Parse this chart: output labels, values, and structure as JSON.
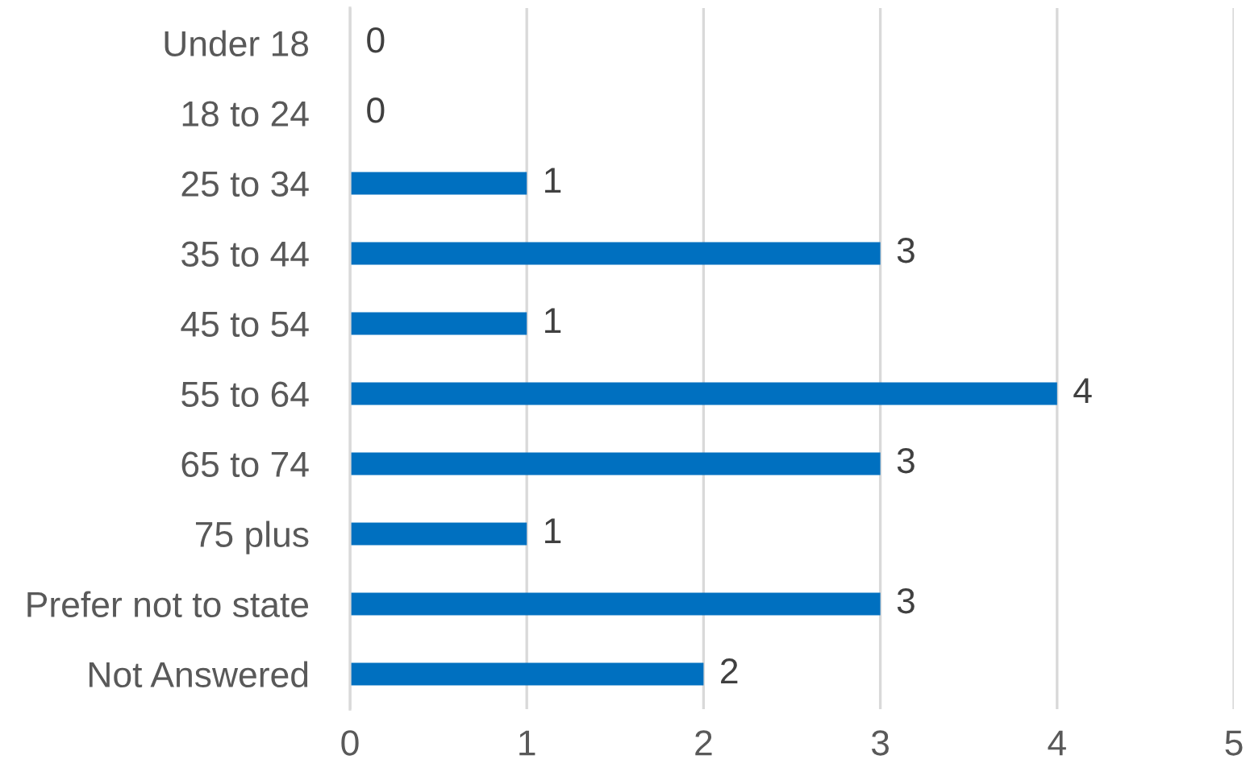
{
  "chart_data": {
    "type": "bar",
    "orientation": "horizontal",
    "categories": [
      "Under 18",
      "18 to 24",
      "25 to 34",
      "35 to 44",
      "45 to 54",
      "55 to 64",
      "65 to 74",
      "75 plus",
      "Prefer not to state",
      "Not Answered"
    ],
    "values": [
      0,
      0,
      1,
      3,
      1,
      4,
      3,
      1,
      3,
      2
    ],
    "color": "#0070c0",
    "xlim": [
      0,
      5
    ],
    "xticks": [
      0,
      1,
      2,
      3,
      4,
      5
    ],
    "grid": "x",
    "data_labels": true
  }
}
